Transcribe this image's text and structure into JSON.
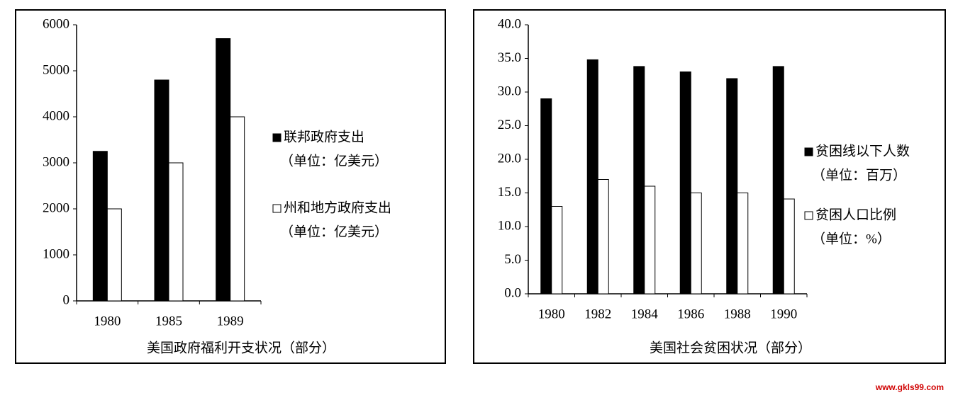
{
  "chart_data": [
    {
      "type": "bar",
      "title": "美国政府福利开支状况（部分）",
      "categories": [
        "1980",
        "1985",
        "1989"
      ],
      "series": [
        {
          "name": "联邦政府支出",
          "unit": "（单位：亿美元）",
          "color": "#000000",
          "values": [
            3250,
            4800,
            5700
          ]
        },
        {
          "name": "州和地方政府支出",
          "unit": "（单位：亿美元）",
          "color": "#ffffff",
          "values": [
            2000,
            3000,
            4000
          ]
        }
      ],
      "ylim": [
        0,
        6000
      ],
      "yticks": [
        0,
        1000,
        2000,
        3000,
        4000,
        5000,
        6000
      ],
      "grid": false,
      "legend": "right"
    },
    {
      "type": "bar",
      "title": "美国社会贫困状况（部分）",
      "categories": [
        "1980",
        "1982",
        "1984",
        "1986",
        "1988",
        "1990"
      ],
      "series": [
        {
          "name": "贫困线以下人数",
          "unit": "（单位：百万）",
          "color": "#000000",
          "values": [
            29,
            34.8,
            33.8,
            33,
            32,
            33.8
          ]
        },
        {
          "name": "贫困人口比例",
          "unit": "（单位：%）",
          "color": "#ffffff",
          "values": [
            13,
            17,
            16,
            15,
            15,
            14.1
          ]
        }
      ],
      "ylim": [
        0,
        40
      ],
      "yticks": [
        {
          "value": 0,
          "label": "0.0"
        },
        {
          "value": 5,
          "label": "5.0"
        },
        {
          "value": 10,
          "label": "10.0"
        },
        {
          "value": 15,
          "label": "15.0"
        },
        {
          "value": 20,
          "label": "20.0"
        },
        {
          "value": 25,
          "label": "25.0"
        },
        {
          "value": 30,
          "label": "30.0"
        },
        {
          "value": 35,
          "label": "35.0"
        },
        {
          "value": 40,
          "label": "40.0"
        }
      ],
      "grid": false,
      "legend": "right"
    }
  ],
  "watermark": "www.gkls99.com"
}
